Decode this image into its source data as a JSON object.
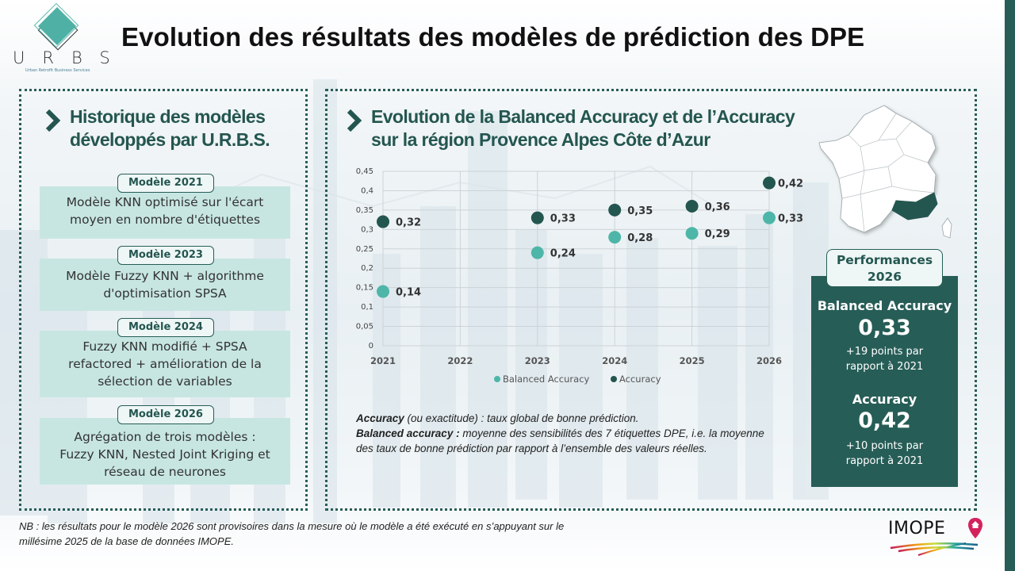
{
  "header": {
    "title": "Evolution des résultats des modèles de prédiction des DPE",
    "logo_letters": "URBS",
    "logo_subtitle": "Urban Retrofit Business Services"
  },
  "left_panel": {
    "title_line1": "Historique des modèles",
    "title_line2": "développés par U.R.B.S.",
    "models": [
      {
        "tag": "Modèle 2021",
        "lines": [
          "Modèle KNN optimisé sur l'écart",
          "moyen en nombre d'étiquettes"
        ]
      },
      {
        "tag": "Modèle 2023",
        "lines": [
          "Modèle Fuzzy KNN + algorithme",
          "d'optimisation SPSA"
        ]
      },
      {
        "tag": "Modèle 2024",
        "lines": [
          "Fuzzy KNN modifié + SPSA",
          "refactored + amélioration de la",
          "sélection de variables"
        ]
      },
      {
        "tag": "Modèle 2026",
        "lines": [
          "Agrégation de trois modèles :",
          "Fuzzy KNN, Nested Joint Kriging et",
          "réseau de neurones"
        ]
      }
    ]
  },
  "right_panel": {
    "title_line1": "Evolution de la Balanced Accuracy et de l’Accuracy",
    "title_line2": "sur la région Provence Alpes Côte d’Azur",
    "definitions": {
      "accuracy_term": "Accuracy",
      "accuracy_text": " (ou exactitude) : taux global de bonne prédiction.",
      "balanced_term": "Balanced accuracy :",
      "balanced_text": " moyenne des sensibilités des 7 étiquettes DPE, i.e. la moyenne des taux de bonne prédiction par rapport à l’ensemble des valeurs réelles."
    }
  },
  "map": {
    "highlighted_region": "Provence-Alpes-Côte d'Azur",
    "highlight_color": "#245650"
  },
  "performance": {
    "tag_line1": "Performances",
    "tag_line2": "2026",
    "balanced_label": "Balanced Accuracy",
    "balanced_value": "0,33",
    "balanced_note_line1": "+19 points par",
    "balanced_note_line2": "rapport à 2021",
    "accuracy_label": "Accuracy",
    "accuracy_value": "0,42",
    "accuracy_note_line1": "+10 points par",
    "accuracy_note_line2": "rapport à 2021"
  },
  "footnote": {
    "line1": "NB : les résultats pour le modèle 2026 sont provisoires dans la mesure où le modèle a été exécuté en s’appuyant sur le",
    "line2": "millésime 2025 de la base de données IMOPE."
  },
  "footer_logo": "IMOPE",
  "colors": {
    "primary": "#275d57",
    "balanced": "#4db6a8",
    "accuracy": "#245650",
    "card_bg": "#c7e6e2"
  },
  "chart_data": {
    "type": "scatter",
    "title": "Evolution de la Balanced Accuracy et de l’Accuracy sur la région Provence Alpes Côte d’Azur",
    "xlabel": "",
    "ylabel": "",
    "categories": [
      "2021",
      "2022",
      "2023",
      "2024",
      "2025",
      "2026"
    ],
    "ylim": [
      0,
      0.45
    ],
    "yticks": [
      0,
      0.05,
      0.1,
      0.15,
      0.2,
      0.25,
      0.3,
      0.35,
      0.4,
      0.45
    ],
    "ytick_labels": [
      "0",
      "0,05",
      "0,1",
      "0,15",
      "0,2",
      "0,25",
      "0,3",
      "0,35",
      "0,4",
      "0,45"
    ],
    "grid": true,
    "legend_position": "bottom",
    "series": [
      {
        "name": "Balanced Accuracy",
        "color": "#4db6a8",
        "values": [
          0.14,
          null,
          0.24,
          0.28,
          0.29,
          0.33
        ],
        "labels": [
          "0,14",
          null,
          "0,24",
          "0,28",
          "0,29",
          "0,33"
        ]
      },
      {
        "name": "Accuracy",
        "color": "#245650",
        "values": [
          0.32,
          null,
          0.33,
          0.35,
          0.36,
          0.42
        ],
        "labels": [
          "0,32",
          null,
          "0,33",
          "0,35",
          "0,36",
          "0,42"
        ]
      }
    ]
  }
}
